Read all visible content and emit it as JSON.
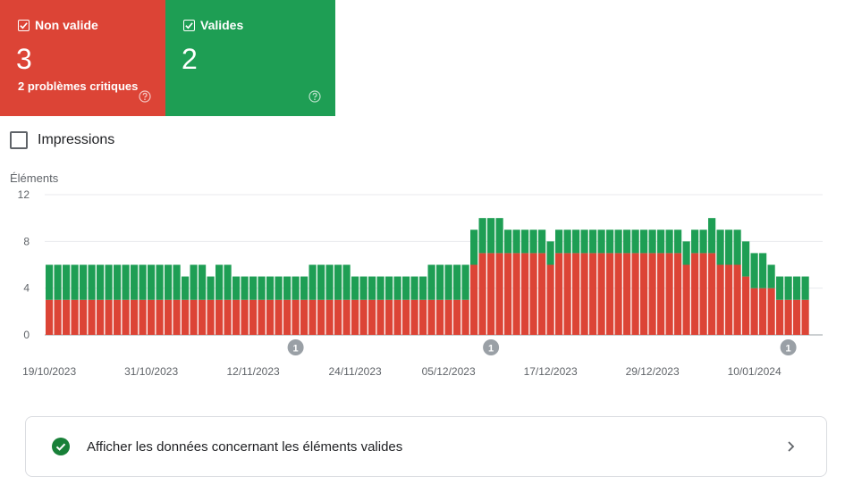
{
  "cards": {
    "invalid": {
      "label": "Non valide",
      "count": "3",
      "subtitle": "2 problèmes critiques",
      "color": "#dc4436"
    },
    "valid": {
      "label": "Valides",
      "count": "2",
      "color": "#1e9e54"
    }
  },
  "impressions_label": "Impressions",
  "chart_data": {
    "type": "bar",
    "stacked": true,
    "ylabel": "Éléments",
    "ylim": [
      0,
      12
    ],
    "yticks": [
      0,
      4,
      8,
      12
    ],
    "x_tick_labels": [
      "19/10/2023",
      "31/10/2023",
      "12/11/2023",
      "24/11/2023",
      "05/12/2023",
      "17/12/2023",
      "29/12/2023",
      "10/01/2024"
    ],
    "date_range": [
      "2023-10-19",
      "2024-01-14"
    ],
    "series": [
      {
        "name": "Non valide",
        "color": "#dc4436",
        "values": [
          3,
          3,
          3,
          3,
          3,
          3,
          3,
          3,
          3,
          3,
          3,
          3,
          3,
          3,
          3,
          3,
          3,
          3,
          3,
          3,
          3,
          3,
          3,
          3,
          3,
          3,
          3,
          3,
          3,
          3,
          3,
          3,
          3,
          3,
          3,
          3,
          3,
          3,
          3,
          3,
          3,
          3,
          3,
          3,
          3,
          3,
          3,
          3,
          3,
          3,
          6,
          7,
          7,
          7,
          7,
          7,
          7,
          7,
          7,
          6,
          7,
          7,
          7,
          7,
          7,
          7,
          7,
          7,
          7,
          7,
          7,
          7,
          7,
          7,
          7,
          6,
          7,
          7,
          7,
          6,
          6,
          6,
          5,
          4,
          4,
          4,
          3,
          3,
          3,
          3
        ]
      },
      {
        "name": "Valides",
        "color": "#1e9e54",
        "values": [
          3,
          3,
          3,
          3,
          3,
          3,
          3,
          3,
          3,
          3,
          3,
          3,
          3,
          3,
          3,
          3,
          2,
          3,
          3,
          2,
          3,
          3,
          2,
          2,
          2,
          2,
          2,
          2,
          2,
          2,
          2,
          3,
          3,
          3,
          3,
          3,
          2,
          2,
          2,
          2,
          2,
          2,
          2,
          2,
          2,
          3,
          3,
          3,
          3,
          3,
          3,
          3,
          3,
          3,
          2,
          2,
          2,
          2,
          2,
          2,
          2,
          2,
          2,
          2,
          2,
          2,
          2,
          2,
          2,
          2,
          2,
          2,
          2,
          2,
          2,
          2,
          2,
          2,
          3,
          3,
          3,
          3,
          3,
          3,
          3,
          2,
          2,
          2,
          2,
          2
        ]
      }
    ],
    "annotations": [
      {
        "label": "1",
        "index": 29
      },
      {
        "label": "1",
        "index": 52
      },
      {
        "label": "1",
        "index": 87
      }
    ]
  },
  "valid_link": {
    "text": "Afficher les données concernant les éléments valides"
  }
}
